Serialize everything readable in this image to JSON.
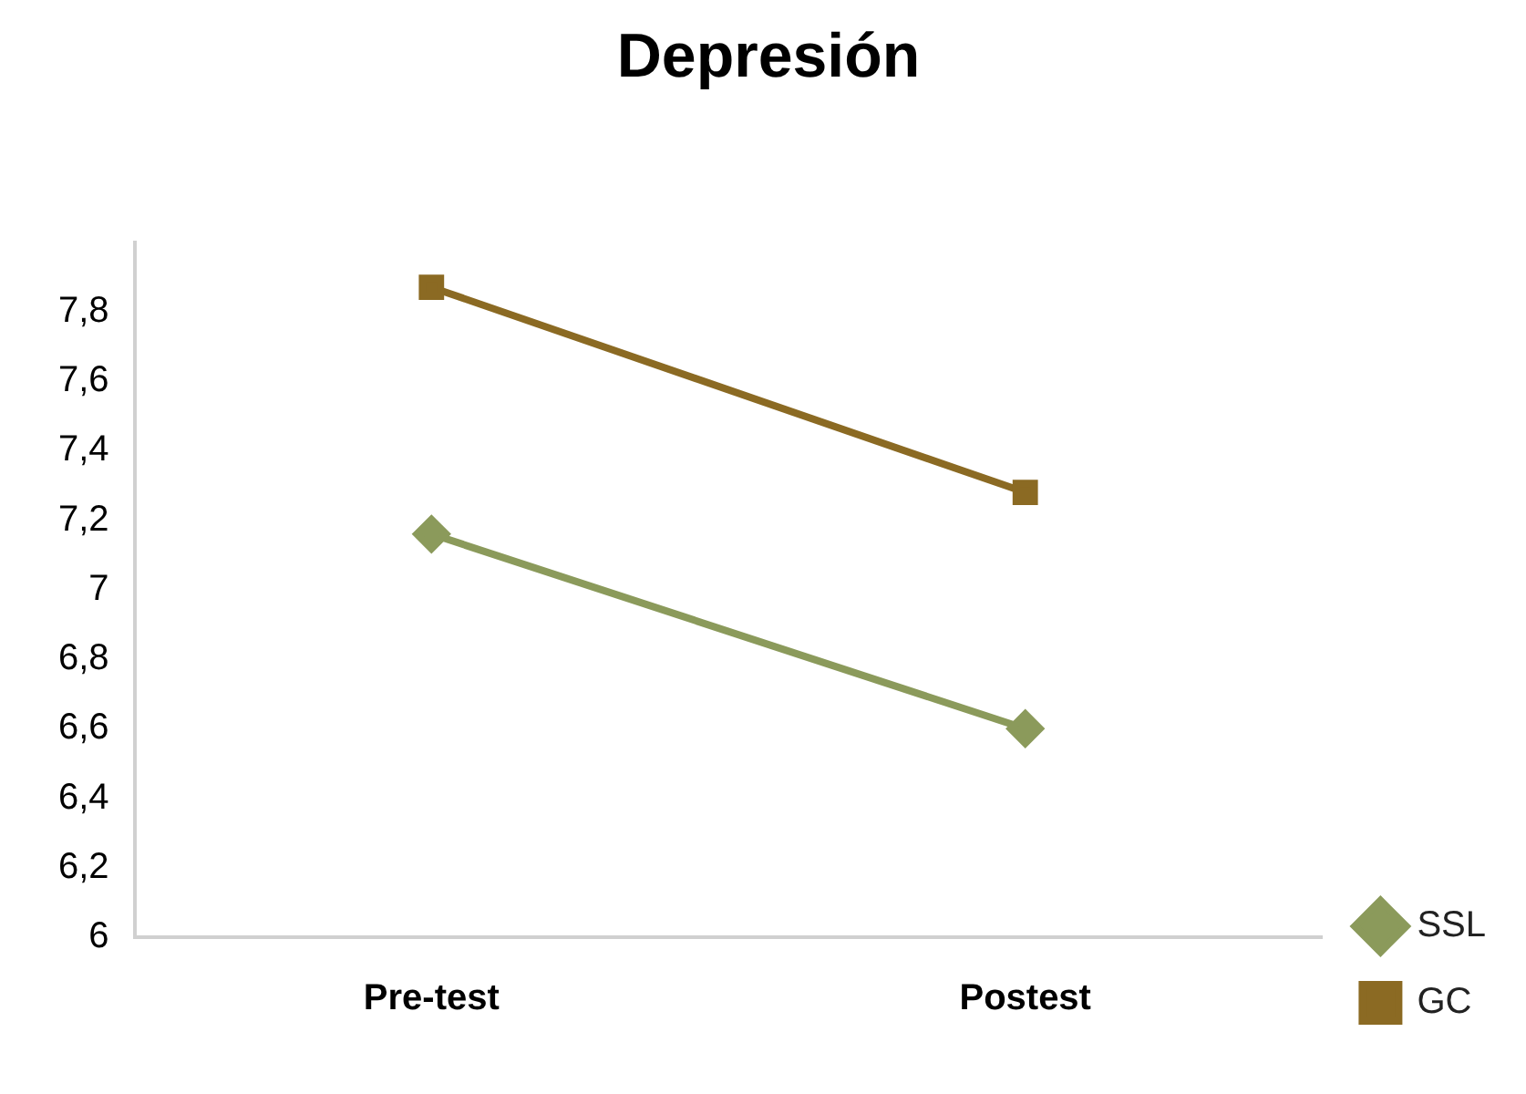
{
  "chart_data": {
    "type": "line",
    "title": "Depresión",
    "categories": [
      "Pre-test",
      "Postest"
    ],
    "series": [
      {
        "name": "SSL",
        "color": "#8b9a5b",
        "values": [
          7.16,
          6.6
        ],
        "marker": "diamond"
      },
      {
        "name": "GC",
        "color": "#8b6a23",
        "values": [
          7.87,
          7.28
        ],
        "marker": "square"
      }
    ],
    "ylim": [
      6,
      8
    ],
    "yticks": [
      {
        "value": 6,
        "label": "6"
      },
      {
        "value": 6.2,
        "label": "6,2"
      },
      {
        "value": 6.4,
        "label": "6,4"
      },
      {
        "value": 6.6,
        "label": "6,6"
      },
      {
        "value": 6.8,
        "label": "6,8"
      },
      {
        "value": 7,
        "label": "7"
      },
      {
        "value": 7.2,
        "label": "7,2"
      },
      {
        "value": 7.4,
        "label": "7,4"
      },
      {
        "value": 7.6,
        "label": "7,6"
      },
      {
        "value": 7.8,
        "label": "7,8"
      }
    ],
    "grid": false,
    "legend": "right",
    "line_style": "solid"
  }
}
